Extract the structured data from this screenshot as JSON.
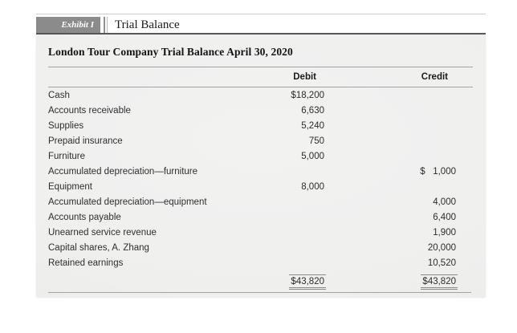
{
  "exhibit": {
    "label": "Exhibit I",
    "tab_title": "Trial Balance"
  },
  "report": {
    "title": "London Tour Company Trial Balance April 30, 2020",
    "columns": {
      "debit": "Debit",
      "credit": "Credit"
    },
    "rows": [
      {
        "account": "Cash",
        "debit": "$18,200",
        "credit": ""
      },
      {
        "account": "Accounts receivable",
        "debit": "6,630",
        "credit": ""
      },
      {
        "account": "Supplies",
        "debit": "5,240",
        "credit": ""
      },
      {
        "account": "Prepaid insurance",
        "debit": "750",
        "credit": ""
      },
      {
        "account": "Furniture",
        "debit": "5,000",
        "credit": ""
      },
      {
        "account": "Accumulated depreciation—furniture",
        "debit": "",
        "credit": "$   1,000"
      },
      {
        "account": "Equipment",
        "debit": "8,000",
        "credit": ""
      },
      {
        "account": "Accumulated depreciation—equipment",
        "debit": "",
        "credit": "4,000"
      },
      {
        "account": "Accounts payable",
        "debit": "",
        "credit": "6,400"
      },
      {
        "account": "Unearned service revenue",
        "debit": "",
        "credit": "1,900"
      },
      {
        "account": "Capital shares, A. Zhang",
        "debit": "",
        "credit": "20,000"
      },
      {
        "account": "Retained earnings",
        "debit": "",
        "credit": "10,520"
      }
    ],
    "totals": {
      "debit": "$43,820",
      "credit": "$43,820"
    }
  },
  "colors": {
    "tab_background": "#8b8b8b",
    "panel_background": "#f0f0ee",
    "rule": "#a3a3a3",
    "dark_rule": "#575757"
  }
}
